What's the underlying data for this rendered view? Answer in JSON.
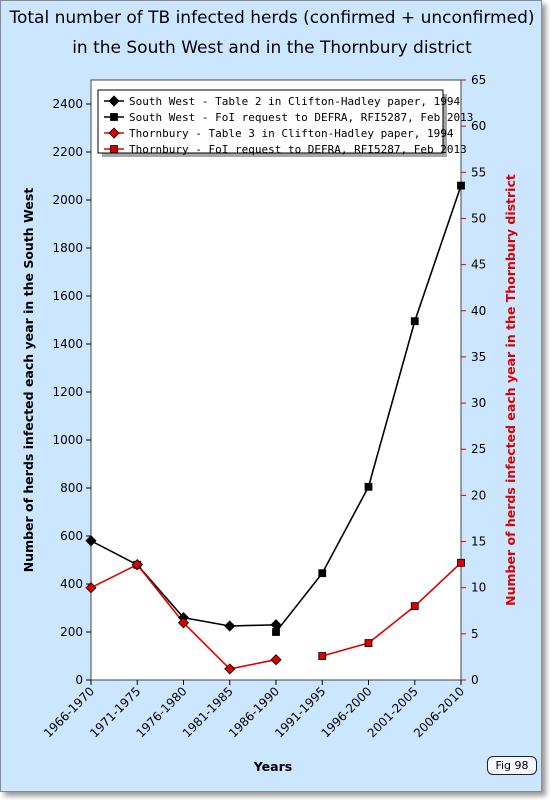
{
  "title": {
    "line1": "Total number of TB infected herds (confirmed + unconfirmed)",
    "line2": "in the South West and in the Thornbury district"
  },
  "fig_label": "Fig 98",
  "colors": {
    "background": "#cce6ff",
    "plot": "#ffffff",
    "black_series": "#000000",
    "red_series": "#dd0000"
  },
  "chart_data": {
    "type": "line",
    "xlabel": "Years",
    "ylabel_left": "Number of herds infected each year in the South West",
    "ylabel_right": "Number of herds infected each year in the Thornbury district",
    "categories": [
      "1966-1970",
      "1971-1975",
      "1976-1980",
      "1981-1985",
      "1986-1990",
      "1991-1995",
      "1996-2000",
      "2001-2005",
      "2006-2010"
    ],
    "ylim_left": [
      0,
      2500
    ],
    "yticks_left": [
      0,
      200,
      400,
      600,
      800,
      1000,
      1200,
      1400,
      1600,
      1800,
      2000,
      2200,
      2400
    ],
    "ylim_right": [
      0,
      65
    ],
    "yticks_right": [
      0,
      5,
      10,
      15,
      20,
      25,
      30,
      35,
      40,
      45,
      50,
      55,
      60,
      65
    ],
    "legend_position": "top-left",
    "series": [
      {
        "name": "South West - Table 2 in Clifton-Hadley paper, 1994",
        "axis": "left",
        "color": "#000000",
        "marker": "diamond",
        "points": [
          {
            "x": 0,
            "y": 580
          },
          {
            "x": 1,
            "y": 480
          },
          {
            "x": 2,
            "y": 260
          },
          {
            "x": 3,
            "y": 225
          },
          {
            "x": 4,
            "y": 230
          }
        ]
      },
      {
        "name": "South West - FoI request to DEFRA, RFI5287, Feb 2013",
        "axis": "left",
        "color": "#000000",
        "marker": "square",
        "points": [
          {
            "x": 1,
            "y": 480
          },
          {
            "x": 4,
            "y": 200
          },
          {
            "x": 5,
            "y": 445
          },
          {
            "x": 6,
            "y": 805
          },
          {
            "x": 7,
            "y": 1495
          },
          {
            "x": 8,
            "y": 2060
          }
        ]
      },
      {
        "name": "Thornbury - Table 3 in Clifton-Hadley paper, 1994",
        "axis": "right",
        "color": "#dd0000",
        "marker": "diamond",
        "points": [
          {
            "x": 0,
            "y": 10
          },
          {
            "x": 1,
            "y": 12.5
          },
          {
            "x": 2,
            "y": 6.2
          },
          {
            "x": 3,
            "y": 1.2
          },
          {
            "x": 4,
            "y": 2.2
          }
        ]
      },
      {
        "name": "Thornbury - FoI request to DEFRA, RFI5287, Feb 2013",
        "axis": "right",
        "color": "#dd0000",
        "marker": "square",
        "points": [
          {
            "x": 5,
            "y": 2.6
          },
          {
            "x": 6,
            "y": 4
          },
          {
            "x": 7,
            "y": 8
          },
          {
            "x": 8,
            "y": 12.7
          }
        ]
      }
    ],
    "line_segments": [
      {
        "color": "#000000",
        "axis": "left",
        "points": [
          {
            "x": 0,
            "y": 580
          },
          {
            "x": 1,
            "y": 480
          },
          {
            "x": 2,
            "y": 260
          },
          {
            "x": 3,
            "y": 225
          },
          {
            "x": 4,
            "y": 230
          },
          {
            "x": 4,
            "y": 200
          },
          {
            "x": 5,
            "y": 445
          },
          {
            "x": 6,
            "y": 805
          },
          {
            "x": 7,
            "y": 1495
          },
          {
            "x": 8,
            "y": 2060
          }
        ]
      },
      {
        "color": "#dd0000",
        "axis": "right",
        "points": [
          {
            "x": 0,
            "y": 10
          },
          {
            "x": 1,
            "y": 12.5
          },
          {
            "x": 2,
            "y": 6.2
          },
          {
            "x": 3,
            "y": 1.2
          },
          {
            "x": 4,
            "y": 2.2
          }
        ]
      },
      {
        "color": "#dd0000",
        "axis": "right",
        "points": [
          {
            "x": 5,
            "y": 2.6
          },
          {
            "x": 6,
            "y": 4
          },
          {
            "x": 7,
            "y": 8
          },
          {
            "x": 8,
            "y": 12.7
          }
        ]
      }
    ]
  }
}
